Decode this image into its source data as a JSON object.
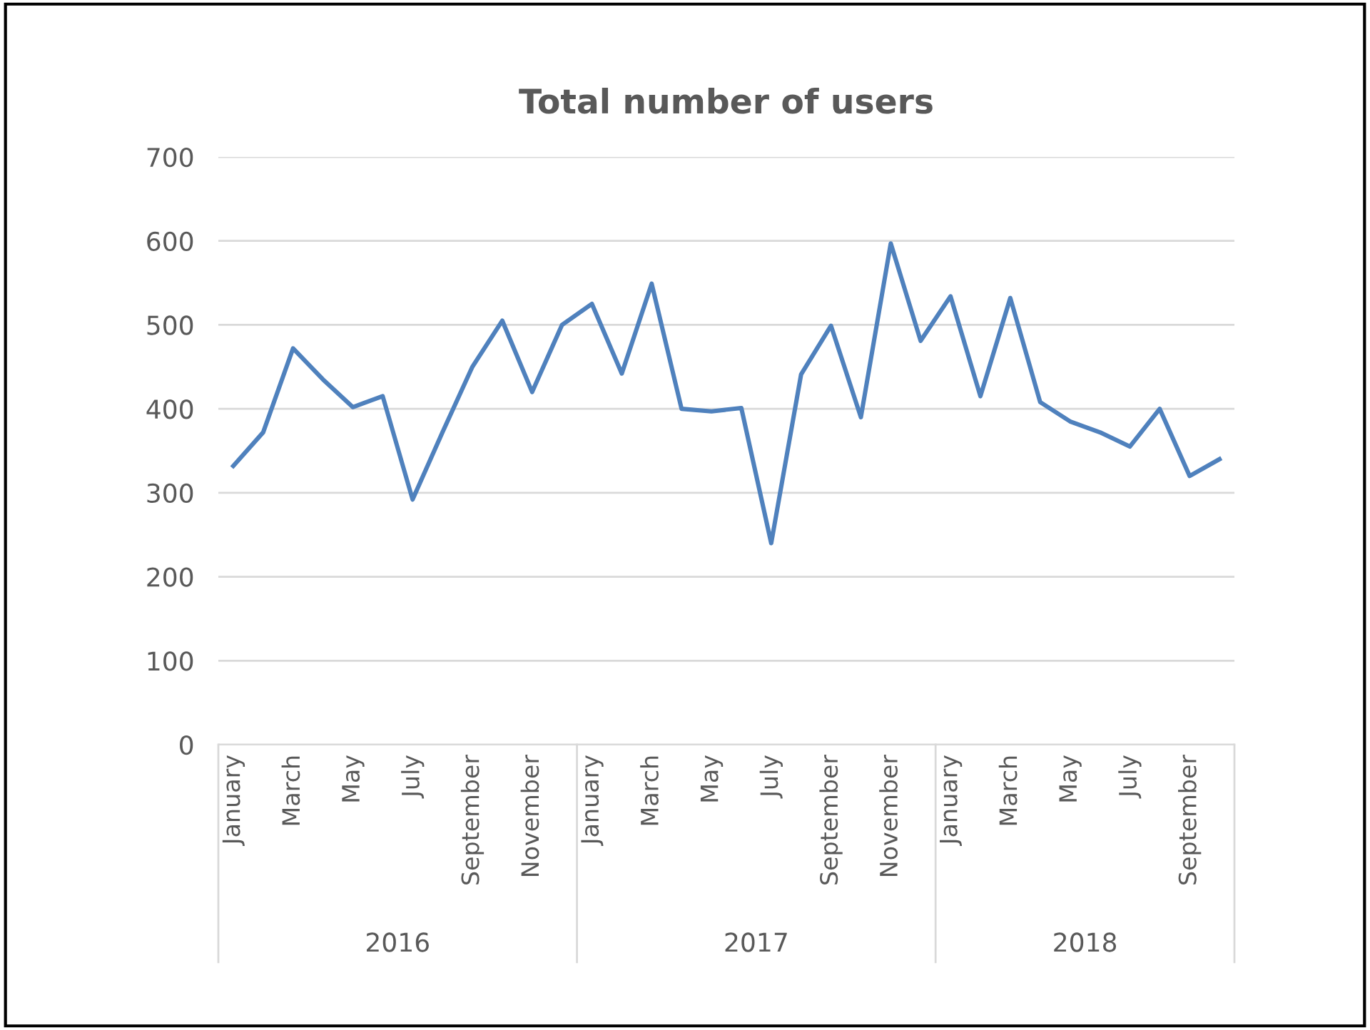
{
  "chart_data": {
    "type": "line",
    "title": "Total number of users",
    "categories": [
      "January",
      null,
      "March",
      null,
      "May",
      null,
      "July",
      null,
      "September",
      null,
      "November",
      null,
      "January",
      null,
      "March",
      null,
      "May",
      null,
      "July",
      null,
      "September",
      null,
      "November",
      null,
      "January",
      null,
      "March",
      null,
      "May",
      null,
      "July",
      null,
      "September",
      null
    ],
    "series": [
      {
        "color": "#4f81bd",
        "values": [
          332,
          372,
          472,
          435,
          402,
          415,
          292,
          372,
          450,
          505,
          420,
          500,
          525,
          442,
          549,
          400,
          397,
          401,
          240,
          441,
          499,
          390,
          597,
          481,
          534,
          415,
          532,
          408,
          385,
          372,
          355,
          400,
          320,
          340
        ]
      }
    ],
    "ylim": [
      0,
      700
    ],
    "yticks": [
      0,
      100,
      200,
      300,
      400,
      500,
      600,
      700
    ],
    "grid": "y",
    "legend": false,
    "marker": "none",
    "line_style": "solid",
    "annotations": [
      "2016",
      "2017",
      "2018"
    ]
  }
}
